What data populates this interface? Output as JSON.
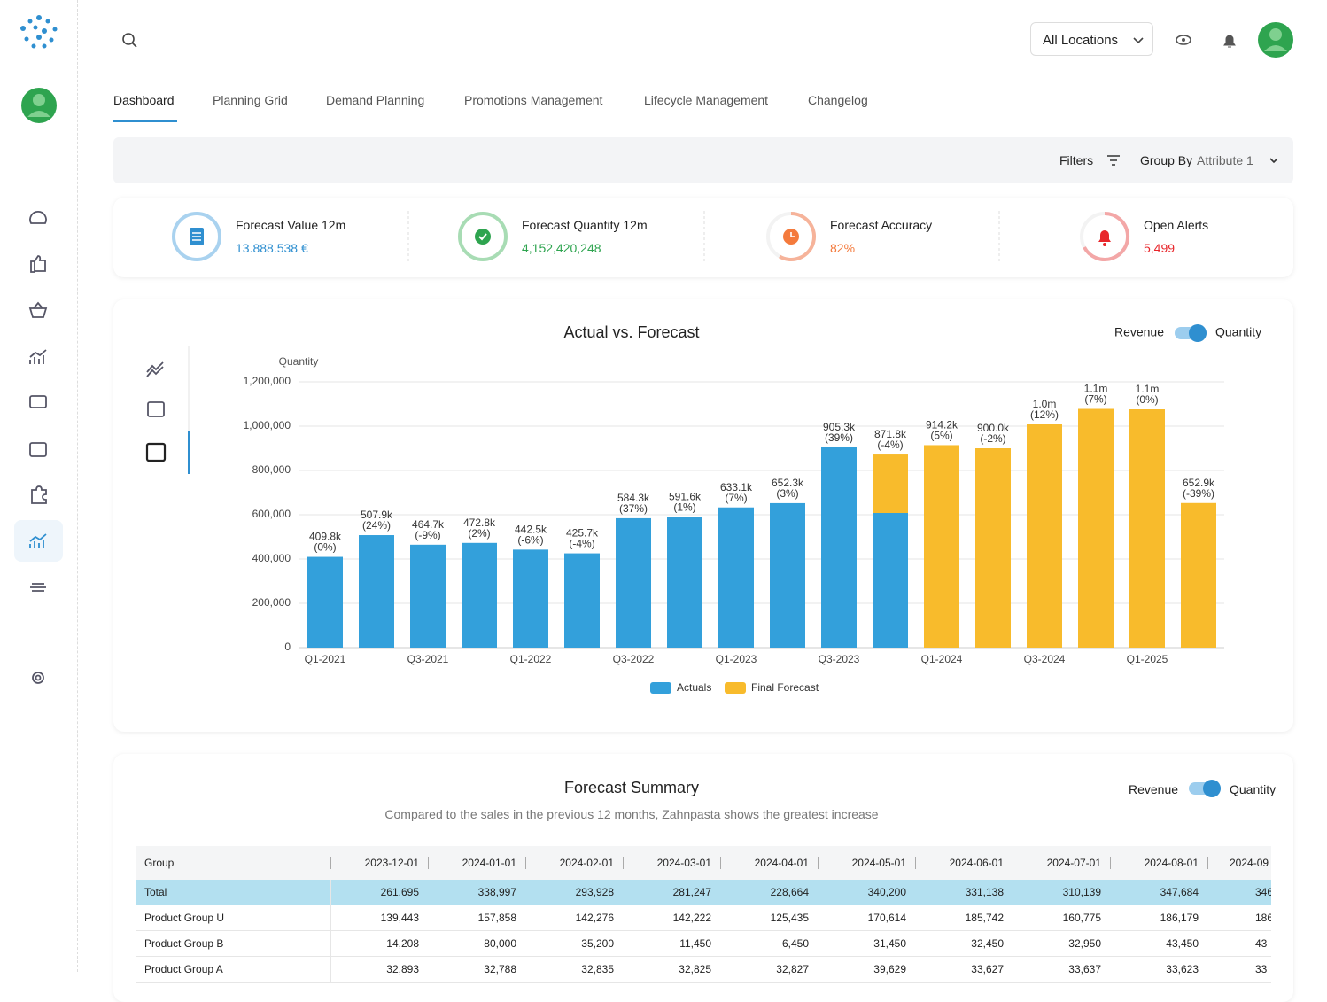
{
  "header": {
    "location": "All Locations"
  },
  "tabs": [
    "Dashboard",
    "Planning Grid",
    "Demand Planning",
    "Promotions Management",
    "Lifecycle Management",
    "Changelog"
  ],
  "filters": {
    "filters": "Filters",
    "group_by": "Group By",
    "attribute": "Attribute 1"
  },
  "kpis": [
    {
      "label": "Forecast Value 12m",
      "value": "13.888.538 €"
    },
    {
      "label": "Forecast Quantity 12m",
      "value": "4,152,420,248"
    },
    {
      "label": "Forecast Accuracy",
      "value": "82%"
    },
    {
      "label": "Open Alerts",
      "value": "5,499"
    }
  ],
  "chart_data": {
    "type": "bar",
    "stacked": true,
    "title": "Actual vs. Forecast",
    "toggle": [
      "Revenue",
      "Quantity"
    ],
    "y_label": "Quantity",
    "categories": [
      "Q1-2021",
      null,
      "Q3-2021",
      null,
      "Q1-2022",
      null,
      "Q3-2022",
      null,
      "Q1-2023",
      null,
      "Q3-2023",
      null,
      "Q1-2024",
      null,
      "Q3-2024",
      null,
      "Q1-2025",
      null
    ],
    "series": [
      {
        "name": "Actuals",
        "color": "#33a0db",
        "values": [
          409800,
          507900,
          464700,
          472800,
          442500,
          425700,
          584300,
          591600,
          633100,
          652300,
          905300,
          608000,
          null,
          null,
          null,
          null,
          null,
          null
        ]
      },
      {
        "name": "Final Forecast",
        "color": "#f8bb2c",
        "values": [
          null,
          null,
          null,
          null,
          null,
          null,
          null,
          null,
          null,
          null,
          null,
          263800,
          914200,
          900000,
          1008000,
          1078000,
          1076000,
          652900
        ]
      }
    ],
    "total_labels": [
      "409.8k",
      "507.9k",
      "464.7k",
      "472.8k",
      "442.5k",
      "425.7k",
      "584.3k",
      "591.6k",
      "633.1k",
      "652.3k",
      "905.3k",
      "871.8k",
      "914.2k",
      "900.0k",
      "1.0m",
      "1.1m",
      "1.1m",
      "652.9k"
    ],
    "change_labels": [
      "(0%)",
      "(24%)",
      "(-9%)",
      "(2%)",
      "(-6%)",
      "(-4%)",
      "(37%)",
      "(1%)",
      "(7%)",
      "(3%)",
      "(39%)",
      "(-4%)",
      "(5%)",
      "(-2%)",
      "(12%)",
      "(7%)",
      "(0%)",
      "(-39%)"
    ],
    "ylim": [
      0,
      1200000
    ],
    "yticks": [
      0,
      {
        "value": 200000,
        "label": "200,000"
      },
      {
        "value": 400000,
        "label": "400,000"
      },
      {
        "value": 600000,
        "label": "600,000"
      },
      {
        "value": 800000,
        "label": "800,000"
      },
      {
        "value": 1000000,
        "label": "1,000,000"
      },
      {
        "value": 1200000,
        "label": "1,200,000"
      }
    ],
    "grid": true
  },
  "summary": {
    "title": "Forecast Summary",
    "subtitle": "Compared to the sales in the previous 12 months, Zahnpasta shows the greatest increase",
    "toggle": [
      "Revenue",
      "Quantity"
    ],
    "table": {
      "columns": [
        "Group",
        "2023-12-01",
        "2024-01-01",
        "2024-02-01",
        "2024-03-01",
        "2024-04-01",
        "2024-05-01",
        "2024-06-01",
        "2024-07-01",
        "2024-08-01",
        "2024-09"
      ],
      "rows": [
        [
          "Total",
          "261,695",
          "338,997",
          "293,928",
          "281,247",
          "228,664",
          "340,200",
          "331,138",
          "310,139",
          "347,684",
          "346"
        ],
        [
          "Product Group U",
          "139,443",
          "157,858",
          "142,276",
          "142,222",
          "125,435",
          "170,614",
          "185,742",
          "160,775",
          "186,179",
          "186"
        ],
        [
          "Product Group B",
          "14,208",
          "80,000",
          "35,200",
          "11,450",
          "6,450",
          "31,450",
          "32,450",
          "32,950",
          "43,450",
          "43"
        ],
        [
          "Product Group A",
          "32,893",
          "32,788",
          "32,835",
          "32,825",
          "32,827",
          "39,629",
          "33,627",
          "33,637",
          "33,623",
          "33"
        ]
      ]
    }
  }
}
